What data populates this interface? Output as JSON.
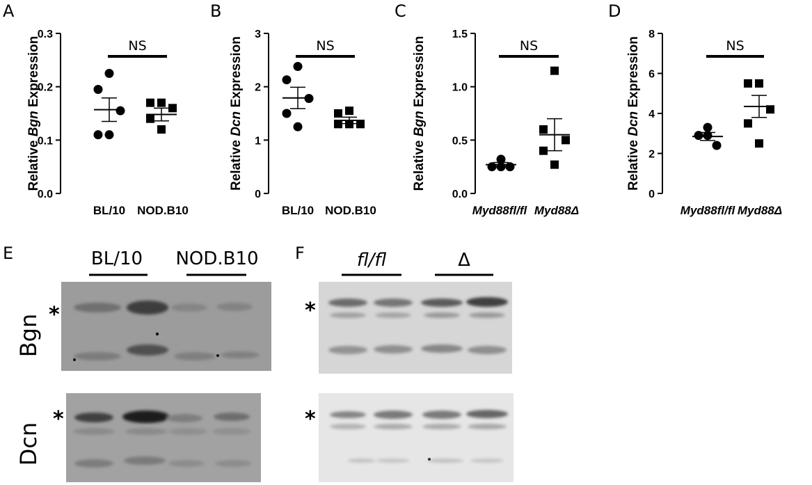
{
  "panels": {
    "A": "A",
    "B": "B",
    "C": "C",
    "D": "D",
    "E": "E",
    "F": "F"
  },
  "chart_data": [
    {
      "type": "scatter",
      "panel": "A",
      "ylabel_parts": [
        "Relative ",
        "Bgn",
        " Expression"
      ],
      "ylim": [
        0,
        0.3
      ],
      "yticks": [
        "0.0",
        "0.1",
        "0.2",
        "0.3"
      ],
      "tick_values": [
        0,
        0.1,
        0.2,
        0.3
      ],
      "categories": [
        "BL/10",
        "NOD.B10"
      ],
      "categories_italic": false,
      "series": [
        {
          "group": "BL/10",
          "marker": "circle",
          "values": [
            0.225,
            0.195,
            0.155,
            0.11,
            0.11
          ],
          "mean": 0.157,
          "sem": 0.022
        },
        {
          "group": "NOD.B10",
          "marker": "square",
          "values": [
            0.17,
            0.17,
            0.16,
            0.14,
            0.12
          ],
          "mean": 0.148,
          "sem": 0.012
        }
      ],
      "annotation": "NS"
    },
    {
      "type": "scatter",
      "panel": "B",
      "ylabel_parts": [
        "Relative ",
        "Dcn",
        " Expression"
      ],
      "ylim": [
        0,
        3
      ],
      "yticks": [
        "0",
        "1",
        "2",
        "3"
      ],
      "tick_values": [
        0,
        1,
        2,
        3
      ],
      "categories": [
        "BL/10",
        "NOD.B10"
      ],
      "categories_italic": false,
      "series": [
        {
          "group": "BL/10",
          "marker": "circle",
          "values": [
            2.38,
            2.13,
            1.78,
            1.5,
            1.25
          ],
          "mean": 1.79,
          "sem": 0.2
        },
        {
          "group": "NOD.B10",
          "marker": "square",
          "values": [
            1.55,
            1.5,
            1.3,
            1.3,
            1.3
          ],
          "mean": 1.37,
          "sem": 0.06
        }
      ],
      "annotation": "NS"
    },
    {
      "type": "scatter",
      "panel": "C",
      "ylabel_parts": [
        "Relative ",
        "Bgn",
        " Expression"
      ],
      "ylim": [
        0,
        1.5
      ],
      "yticks": [
        "0.0",
        "0.5",
        "1.0",
        "1.5"
      ],
      "tick_values": [
        0,
        0.5,
        1.0,
        1.5
      ],
      "categories": [
        "Myd88fl/fl",
        "Myd88Δ"
      ],
      "categories_italic": true,
      "series": [
        {
          "group": "Myd88fl/fl",
          "marker": "circle",
          "values": [
            0.32,
            0.25,
            0.25,
            0.25
          ],
          "mean": 0.27,
          "sem": 0.02
        },
        {
          "group": "Myd88Δ",
          "marker": "square",
          "values": [
            1.15,
            0.6,
            0.5,
            0.4,
            0.27
          ],
          "mean": 0.55,
          "sem": 0.15
        }
      ],
      "annotation": "NS"
    },
    {
      "type": "scatter",
      "panel": "D",
      "ylabel_parts": [
        "Relative ",
        "Dcn",
        " Expression"
      ],
      "ylim": [
        0,
        8
      ],
      "yticks": [
        "0",
        "2",
        "4",
        "6",
        "8"
      ],
      "tick_values": [
        0,
        2,
        4,
        6,
        8
      ],
      "categories": [
        "Myd88fl/fl",
        "Myd88Δ"
      ],
      "categories_italic": true,
      "series": [
        {
          "group": "Myd88fl/fl",
          "marker": "circle",
          "values": [
            3.3,
            2.9,
            2.9,
            2.4
          ],
          "mean": 2.85,
          "sem": 0.2
        },
        {
          "group": "Myd88Δ",
          "marker": "square",
          "values": [
            5.5,
            5.5,
            4.2,
            3.5,
            2.5
          ],
          "mean": 4.35,
          "sem": 0.55
        }
      ],
      "annotation": "NS"
    }
  ],
  "blots": {
    "E": {
      "group1": "BL/10",
      "group2": "NOD.B10",
      "row1": "Bgn",
      "row2": "Dcn",
      "marker": "*"
    },
    "F": {
      "group1": "fl/fl",
      "group2": "Δ",
      "marker": "*"
    }
  }
}
